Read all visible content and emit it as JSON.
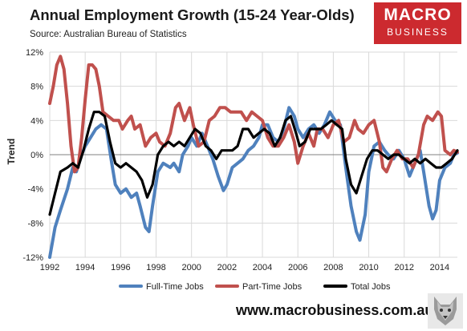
{
  "header": {
    "title": "Annual Employment Growth (15-24 Year-Olds)",
    "source": "Source: Australian Bureau of Statistics"
  },
  "logo": {
    "line1": "MACRO",
    "line2": "BUSINESS",
    "bg": "#cc2a2f"
  },
  "footer": {
    "website": "www.macrobusiness.com.au"
  },
  "chart_data": {
    "type": "line",
    "title": "Annual Employment Growth (15-24 Year-Olds)",
    "ylabel": "Trend",
    "xlabel": "",
    "xlim": [
      1992,
      2015
    ],
    "ylim": [
      -12,
      12
    ],
    "yticks": [
      -12,
      -8,
      -4,
      0,
      4,
      8,
      12
    ],
    "yticklabels": [
      "-12%",
      "-8%",
      "-4%",
      "0%",
      "4%",
      "8%",
      "12%"
    ],
    "xticks": [
      1992,
      1994,
      1996,
      1998,
      2000,
      2002,
      2004,
      2006,
      2008,
      2010,
      2012,
      2014
    ],
    "xticklabels": [
      "1992",
      "1994",
      "1996",
      "1998",
      "2000",
      "2002",
      "2004",
      "2006",
      "2008",
      "2010",
      "2012",
      "2014"
    ],
    "grid": true,
    "legend_position": "bottom",
    "series": [
      {
        "name": "Full-Time Jobs",
        "color": "#4f81bd",
        "points": [
          [
            1992.0,
            -12.0
          ],
          [
            1992.3,
            -8.5
          ],
          [
            1992.6,
            -6.5
          ],
          [
            1993.0,
            -4.0
          ],
          [
            1993.3,
            -1.5
          ],
          [
            1993.5,
            -2.0
          ],
          [
            1993.8,
            0.0
          ],
          [
            1994.0,
            1.0
          ],
          [
            1994.3,
            2.0
          ],
          [
            1994.6,
            3.0
          ],
          [
            1994.9,
            3.5
          ],
          [
            1995.2,
            3.0
          ],
          [
            1995.5,
            -1.0
          ],
          [
            1995.7,
            -3.5
          ],
          [
            1996.0,
            -4.5
          ],
          [
            1996.3,
            -4.0
          ],
          [
            1996.6,
            -5.0
          ],
          [
            1996.9,
            -4.5
          ],
          [
            1997.1,
            -6.0
          ],
          [
            1997.4,
            -8.5
          ],
          [
            1997.6,
            -9.0
          ],
          [
            1997.8,
            -6.0
          ],
          [
            1998.1,
            -2.0
          ],
          [
            1998.4,
            -1.0
          ],
          [
            1998.8,
            -1.5
          ],
          [
            1999.0,
            -1.0
          ],
          [
            1999.3,
            -2.0
          ],
          [
            1999.5,
            0.0
          ],
          [
            1999.8,
            1.0
          ],
          [
            2000.0,
            2.0
          ],
          [
            2000.3,
            1.0
          ],
          [
            2000.6,
            2.5
          ],
          [
            2000.9,
            1.0
          ],
          [
            2001.2,
            -0.5
          ],
          [
            2001.5,
            -2.5
          ],
          [
            2001.8,
            -4.2
          ],
          [
            2002.0,
            -3.5
          ],
          [
            2002.3,
            -1.5
          ],
          [
            2002.6,
            -1.0
          ],
          [
            2002.9,
            -0.5
          ],
          [
            2003.2,
            0.5
          ],
          [
            2003.5,
            1.0
          ],
          [
            2003.8,
            2.0
          ],
          [
            2004.0,
            3.5
          ],
          [
            2004.3,
            3.5
          ],
          [
            2004.6,
            2.0
          ],
          [
            2004.9,
            1.5
          ],
          [
            2005.2,
            3.0
          ],
          [
            2005.5,
            5.5
          ],
          [
            2005.8,
            4.5
          ],
          [
            2006.0,
            3.0
          ],
          [
            2006.3,
            2.0
          ],
          [
            2006.6,
            3.0
          ],
          [
            2006.9,
            3.5
          ],
          [
            2007.2,
            2.5
          ],
          [
            2007.5,
            3.5
          ],
          [
            2007.8,
            5.0
          ],
          [
            2008.1,
            4.0
          ],
          [
            2008.4,
            3.5
          ],
          [
            2008.7,
            -1.5
          ],
          [
            2009.0,
            -6.0
          ],
          [
            2009.3,
            -9.0
          ],
          [
            2009.5,
            -10.0
          ],
          [
            2009.8,
            -7.0
          ],
          [
            2010.0,
            -2.0
          ],
          [
            2010.3,
            1.0
          ],
          [
            2010.6,
            1.5
          ],
          [
            2010.9,
            0.5
          ],
          [
            2011.1,
            0.0
          ],
          [
            2011.4,
            -0.5
          ],
          [
            2011.7,
            0.5
          ],
          [
            2012.0,
            -0.5
          ],
          [
            2012.3,
            -2.5
          ],
          [
            2012.6,
            -1.0
          ],
          [
            2012.9,
            0.5
          ],
          [
            2013.1,
            -2.0
          ],
          [
            2013.4,
            -6.0
          ],
          [
            2013.6,
            -7.5
          ],
          [
            2013.8,
            -6.5
          ],
          [
            2014.0,
            -3.0
          ],
          [
            2014.3,
            -1.5
          ],
          [
            2014.6,
            -1.0
          ],
          [
            2014.8,
            0.0
          ],
          [
            2015.0,
            0.2
          ]
        ]
      },
      {
        "name": "Part-Time Jobs",
        "color": "#c0504d",
        "points": [
          [
            1992.0,
            6.0
          ],
          [
            1992.2,
            8.0
          ],
          [
            1992.4,
            10.5
          ],
          [
            1992.6,
            11.5
          ],
          [
            1992.8,
            10.0
          ],
          [
            1993.0,
            6.0
          ],
          [
            1993.2,
            1.0
          ],
          [
            1993.4,
            -2.0
          ],
          [
            1993.6,
            -1.5
          ],
          [
            1993.8,
            2.0
          ],
          [
            1994.0,
            6.5
          ],
          [
            1994.2,
            10.5
          ],
          [
            1994.4,
            10.5
          ],
          [
            1994.6,
            10.0
          ],
          [
            1994.8,
            8.0
          ],
          [
            1995.0,
            5.0
          ],
          [
            1995.3,
            4.5
          ],
          [
            1995.6,
            4.0
          ],
          [
            1995.9,
            4.0
          ],
          [
            1996.1,
            3.0
          ],
          [
            1996.4,
            4.0
          ],
          [
            1996.6,
            4.5
          ],
          [
            1996.8,
            3.0
          ],
          [
            1997.1,
            3.5
          ],
          [
            1997.4,
            1.0
          ],
          [
            1997.7,
            2.0
          ],
          [
            1998.0,
            2.5
          ],
          [
            1998.2,
            1.5
          ],
          [
            1998.5,
            1.0
          ],
          [
            1998.8,
            2.5
          ],
          [
            1999.1,
            5.5
          ],
          [
            1999.3,
            6.0
          ],
          [
            1999.6,
            4.0
          ],
          [
            1999.9,
            5.5
          ],
          [
            2000.1,
            3.5
          ],
          [
            2000.4,
            1.0
          ],
          [
            2000.7,
            1.5
          ],
          [
            2001.0,
            4.0
          ],
          [
            2001.3,
            4.5
          ],
          [
            2001.6,
            5.5
          ],
          [
            2001.9,
            5.5
          ],
          [
            2002.2,
            5.0
          ],
          [
            2002.5,
            5.0
          ],
          [
            2002.8,
            5.0
          ],
          [
            2003.1,
            4.0
          ],
          [
            2003.4,
            5.0
          ],
          [
            2003.7,
            4.5
          ],
          [
            2004.0,
            4.0
          ],
          [
            2004.3,
            2.0
          ],
          [
            2004.6,
            1.0
          ],
          [
            2004.9,
            1.0
          ],
          [
            2005.2,
            2.0
          ],
          [
            2005.5,
            3.5
          ],
          [
            2005.8,
            1.5
          ],
          [
            2006.0,
            -1.0
          ],
          [
            2006.3,
            1.0
          ],
          [
            2006.6,
            2.5
          ],
          [
            2006.9,
            1.0
          ],
          [
            2007.1,
            3.0
          ],
          [
            2007.4,
            3.0
          ],
          [
            2007.7,
            2.0
          ],
          [
            2008.0,
            3.5
          ],
          [
            2008.3,
            4.0
          ],
          [
            2008.6,
            1.5
          ],
          [
            2008.9,
            2.0
          ],
          [
            2009.2,
            4.0
          ],
          [
            2009.4,
            3.0
          ],
          [
            2009.7,
            2.5
          ],
          [
            2010.0,
            3.5
          ],
          [
            2010.3,
            4.0
          ],
          [
            2010.6,
            1.5
          ],
          [
            2010.8,
            -1.5
          ],
          [
            2011.0,
            -2.0
          ],
          [
            2011.3,
            -0.5
          ],
          [
            2011.6,
            0.5
          ],
          [
            2011.9,
            -0.5
          ],
          [
            2012.2,
            -0.5
          ],
          [
            2012.5,
            -1.5
          ],
          [
            2012.8,
            0.0
          ],
          [
            2013.1,
            3.5
          ],
          [
            2013.3,
            4.5
          ],
          [
            2013.6,
            4.0
          ],
          [
            2013.9,
            5.0
          ],
          [
            2014.1,
            4.5
          ],
          [
            2014.3,
            0.5
          ],
          [
            2014.6,
            0.0
          ],
          [
            2014.8,
            0.5
          ],
          [
            2015.0,
            0.3
          ]
        ]
      },
      {
        "name": "Total Jobs",
        "color": "#000000",
        "points": [
          [
            1992.0,
            -7.0
          ],
          [
            1992.3,
            -4.5
          ],
          [
            1992.6,
            -2.0
          ],
          [
            1993.0,
            -1.5
          ],
          [
            1993.3,
            -1.0
          ],
          [
            1993.6,
            -1.5
          ],
          [
            1993.9,
            0.5
          ],
          [
            1994.2,
            3.0
          ],
          [
            1994.5,
            5.0
          ],
          [
            1994.8,
            5.0
          ],
          [
            1995.1,
            4.5
          ],
          [
            1995.4,
            1.5
          ],
          [
            1995.7,
            -1.0
          ],
          [
            1996.0,
            -1.5
          ],
          [
            1996.3,
            -1.0
          ],
          [
            1996.6,
            -1.5
          ],
          [
            1996.9,
            -2.0
          ],
          [
            1997.2,
            -3.0
          ],
          [
            1997.5,
            -5.0
          ],
          [
            1997.8,
            -3.5
          ],
          [
            1998.1,
            0.0
          ],
          [
            1998.4,
            1.0
          ],
          [
            1998.7,
            1.5
          ],
          [
            1999.0,
            1.0
          ],
          [
            1999.3,
            1.5
          ],
          [
            1999.6,
            1.0
          ],
          [
            1999.9,
            2.0
          ],
          [
            2000.2,
            3.0
          ],
          [
            2000.5,
            2.5
          ],
          [
            2000.8,
            1.0
          ],
          [
            2001.1,
            0.5
          ],
          [
            2001.4,
            -0.5
          ],
          [
            2001.7,
            0.5
          ],
          [
            2002.0,
            0.5
          ],
          [
            2002.3,
            0.5
          ],
          [
            2002.6,
            1.0
          ],
          [
            2002.9,
            3.0
          ],
          [
            2003.2,
            3.0
          ],
          [
            2003.5,
            2.0
          ],
          [
            2003.8,
            2.5
          ],
          [
            2004.1,
            3.0
          ],
          [
            2004.4,
            2.5
          ],
          [
            2004.7,
            1.0
          ],
          [
            2005.0,
            2.0
          ],
          [
            2005.3,
            4.0
          ],
          [
            2005.6,
            4.5
          ],
          [
            2005.9,
            2.5
          ],
          [
            2006.1,
            1.0
          ],
          [
            2006.4,
            1.5
          ],
          [
            2006.7,
            3.0
          ],
          [
            2007.0,
            3.0
          ],
          [
            2007.3,
            3.0
          ],
          [
            2007.6,
            3.5
          ],
          [
            2007.9,
            4.0
          ],
          [
            2008.2,
            3.5
          ],
          [
            2008.5,
            3.0
          ],
          [
            2008.7,
            -0.5
          ],
          [
            2009.0,
            -3.5
          ],
          [
            2009.3,
            -4.5
          ],
          [
            2009.6,
            -2.5
          ],
          [
            2009.9,
            -0.5
          ],
          [
            2010.2,
            0.5
          ],
          [
            2010.5,
            0.5
          ],
          [
            2010.8,
            0.0
          ],
          [
            2011.1,
            -0.5
          ],
          [
            2011.4,
            0.0
          ],
          [
            2011.7,
            0.0
          ],
          [
            2012.0,
            -0.5
          ],
          [
            2012.3,
            -1.0
          ],
          [
            2012.6,
            -0.5
          ],
          [
            2012.9,
            -1.0
          ],
          [
            2013.2,
            -0.5
          ],
          [
            2013.5,
            -1.0
          ],
          [
            2013.8,
            -1.5
          ],
          [
            2014.1,
            -1.5
          ],
          [
            2014.4,
            -1.0
          ],
          [
            2014.7,
            -0.5
          ],
          [
            2015.0,
            0.5
          ]
        ]
      }
    ]
  }
}
